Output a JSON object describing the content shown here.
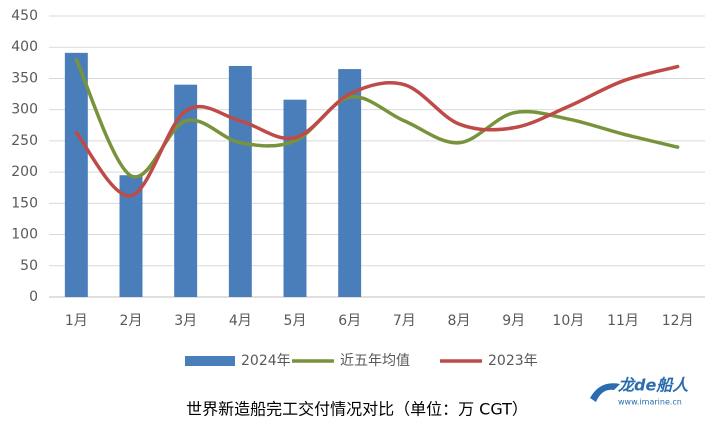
{
  "chart_data": {
    "type": "combo",
    "title": "世界新造船完工交付情况对比（单位：万 CGT）",
    "categories": [
      "1月",
      "2月",
      "3月",
      "4月",
      "5月",
      "6月",
      "7月",
      "8月",
      "9月",
      "10月",
      "11月",
      "12月"
    ],
    "series": [
      {
        "name": "2024年",
        "type": "bar",
        "color": "#4a7ebb",
        "values": [
          391,
          195,
          340,
          370,
          316,
          365,
          null,
          null,
          null,
          null,
          null,
          null
        ]
      },
      {
        "name": "近五年均值",
        "type": "line",
        "color": "#77933c",
        "values": [
          380,
          194,
          282,
          247,
          250,
          320,
          282,
          247,
          295,
          285,
          261,
          240
        ]
      },
      {
        "name": "2023年",
        "type": "line",
        "color": "#be4b48",
        "values": [
          263,
          162,
          298,
          282,
          255,
          325,
          340,
          277,
          271,
          305,
          346,
          369
        ]
      }
    ],
    "ylim": [
      0,
      450
    ],
    "yticks": [
      0,
      50,
      100,
      150,
      200,
      250,
      300,
      350,
      400,
      450
    ],
    "grid": true,
    "legend": "bottom",
    "watermark": {
      "brand": "龙de船人",
      "url": "www.imarine.cn"
    }
  }
}
